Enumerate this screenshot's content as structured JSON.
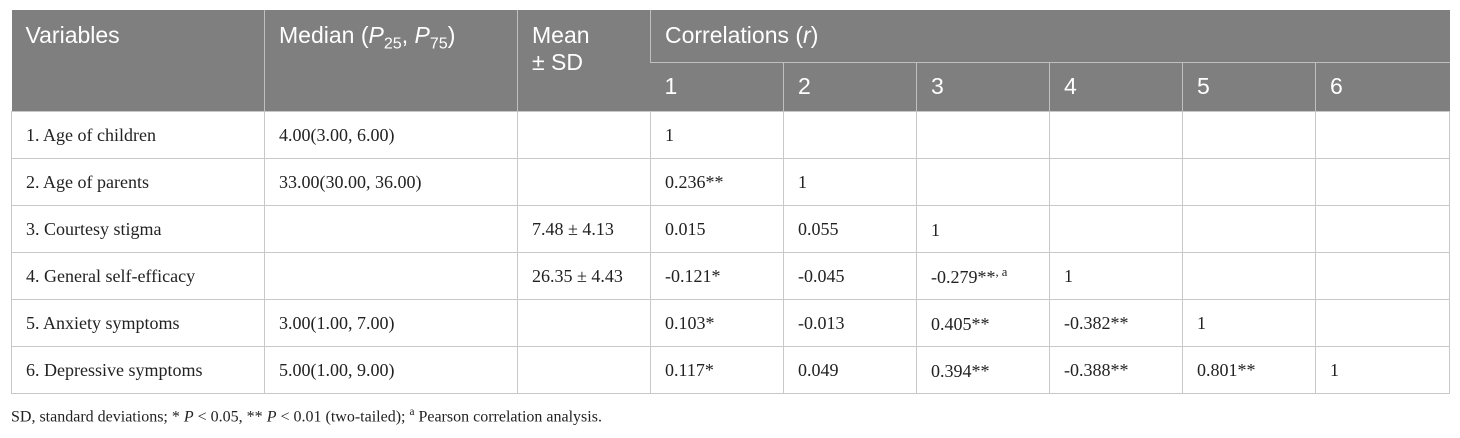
{
  "header": {
    "variables": "Variables",
    "median_prefix": "Median (",
    "median_p25": "P",
    "median_p25_sub": "25",
    "median_comma": ", ",
    "median_p75": "P",
    "median_p75_sub": "75",
    "median_suffix": ")",
    "mean_line1": "Mean",
    "mean_line2": "± SD",
    "correlations_prefix": "Correlations (",
    "correlations_r": "r",
    "correlations_suffix": ")",
    "col_numbers": [
      "1",
      "2",
      "3",
      "4",
      "5",
      "6"
    ]
  },
  "rows": [
    {
      "variable": "1. Age of children",
      "median": "4.00(3.00, 6.00)",
      "mean": "",
      "c1": "1",
      "c2": "",
      "c3": "",
      "c3_sup": "",
      "c4": "",
      "c5": "",
      "c6": ""
    },
    {
      "variable": "2. Age of parents",
      "median": "33.00(30.00, 36.00)",
      "mean": "",
      "c1": "0.236**",
      "c2": "1",
      "c3": "",
      "c3_sup": "",
      "c4": "",
      "c5": "",
      "c6": ""
    },
    {
      "variable": "3. Courtesy stigma",
      "median": "",
      "mean": "7.48 ± 4.13",
      "c1": "0.015",
      "c2": "0.055",
      "c3": "1",
      "c3_sup": "",
      "c4": "",
      "c5": "",
      "c6": ""
    },
    {
      "variable": "4. General self-efficacy",
      "median": "",
      "mean": "26.35 ± 4.43",
      "c1": "-0.121*",
      "c2": "-0.045",
      "c3": "-0.279**",
      "c3_sup": ", a",
      "c4": "1",
      "c5": "",
      "c6": ""
    },
    {
      "variable": "5. Anxiety symptoms",
      "median": "3.00(1.00, 7.00)",
      "mean": "",
      "c1": "0.103*",
      "c2": "-0.013",
      "c3": "0.405**",
      "c3_sup": "",
      "c4": "-0.382**",
      "c5": "1",
      "c6": ""
    },
    {
      "variable": "6. Depressive symptoms",
      "median": "5.00(1.00, 9.00)",
      "mean": "",
      "c1": "0.117*",
      "c2": "0.049",
      "c3": "0.394**",
      "c3_sup": "",
      "c4": "-0.388**",
      "c5": "0.801**",
      "c6": "1"
    }
  ],
  "footnote": {
    "part1": "SD, standard deviations; * ",
    "p1": "P",
    "part2": " < 0.05, ** ",
    "p2": "P",
    "part3": " < 0.01 (two-tailed); ",
    "sup_a": "a",
    "part4": " Pearson correlation analysis."
  }
}
